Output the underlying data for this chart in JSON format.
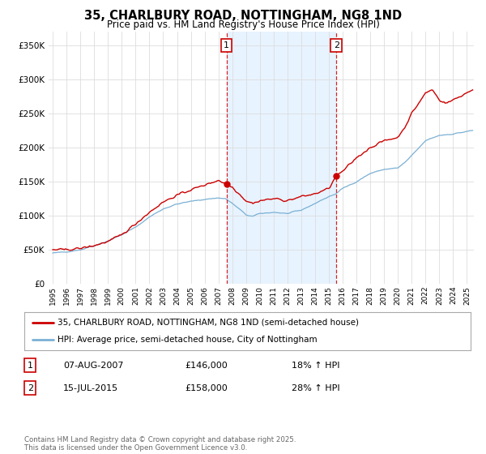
{
  "title": "35, CHARLBURY ROAD, NOTTINGHAM, NG8 1ND",
  "subtitle": "Price paid vs. HM Land Registry's House Price Index (HPI)",
  "ylabel_ticks": [
    "£0",
    "£50K",
    "£100K",
    "£150K",
    "£200K",
    "£250K",
    "£300K",
    "£350K"
  ],
  "ytick_values": [
    0,
    50000,
    100000,
    150000,
    200000,
    250000,
    300000,
    350000
  ],
  "ylim": [
    0,
    370000
  ],
  "xlim_start": 1994.7,
  "xlim_end": 2025.5,
  "line1_color": "#cc0000",
  "line2_color": "#7ab0d4",
  "vline_color": "#cc0000",
  "vline_style": "--",
  "vline1_x": 2007.58,
  "vline2_x": 2015.54,
  "shade_color": "#ddeeff",
  "marker1_label": "1",
  "marker2_label": "2",
  "legend_label1": "35, CHARLBURY ROAD, NOTTINGHAM, NG8 1ND (semi-detached house)",
  "legend_label2": "HPI: Average price, semi-detached house, City of Nottingham",
  "transaction1_num": "1",
  "transaction1_date": "07-AUG-2007",
  "transaction1_price": "£146,000",
  "transaction1_hpi": "18% ↑ HPI",
  "transaction2_num": "2",
  "transaction2_date": "15-JUL-2015",
  "transaction2_price": "£158,000",
  "transaction2_hpi": "28% ↑ HPI",
  "footer": "Contains HM Land Registry data © Crown copyright and database right 2025.\nThis data is licensed under the Open Government Licence v3.0.",
  "background_color": "#ffffff",
  "plot_bg_color": "#ffffff"
}
